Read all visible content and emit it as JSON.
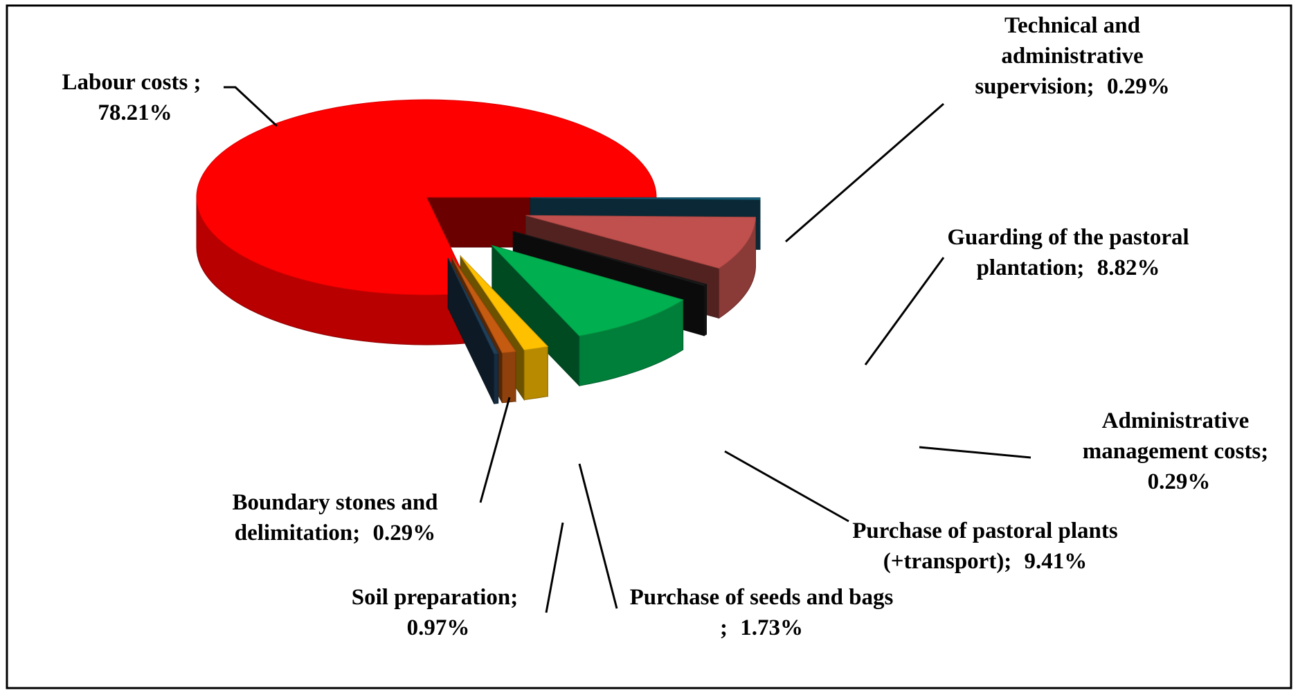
{
  "chart_data": {
    "type": "pie",
    "three_d": true,
    "exploded": true,
    "categories": [
      "Labour costs  ;",
      "Technical and administrative supervision;",
      "Guarding of the pastoral plantation;",
      "Administrative management costs;",
      "Purchase of pastoral plants (+transport);",
      "Purchase of seeds and bags ;",
      "Soil preparation;",
      "Boundary stones and delimitation;"
    ],
    "values": [
      78.21,
      0.29,
      8.82,
      0.29,
      9.41,
      1.73,
      0.97,
      0.29
    ],
    "value_labels": [
      "78.21%",
      "0.29%",
      "8.82%",
      "0.29%",
      "9.41%",
      "1.73%",
      "0.97%",
      "0.29%"
    ],
    "colors": [
      "#ff0000",
      "#17607d",
      "#c0504d",
      "#1a1a1a",
      "#00b050",
      "#ffc000",
      "#c55a11",
      "#1f3f5a"
    ]
  }
}
